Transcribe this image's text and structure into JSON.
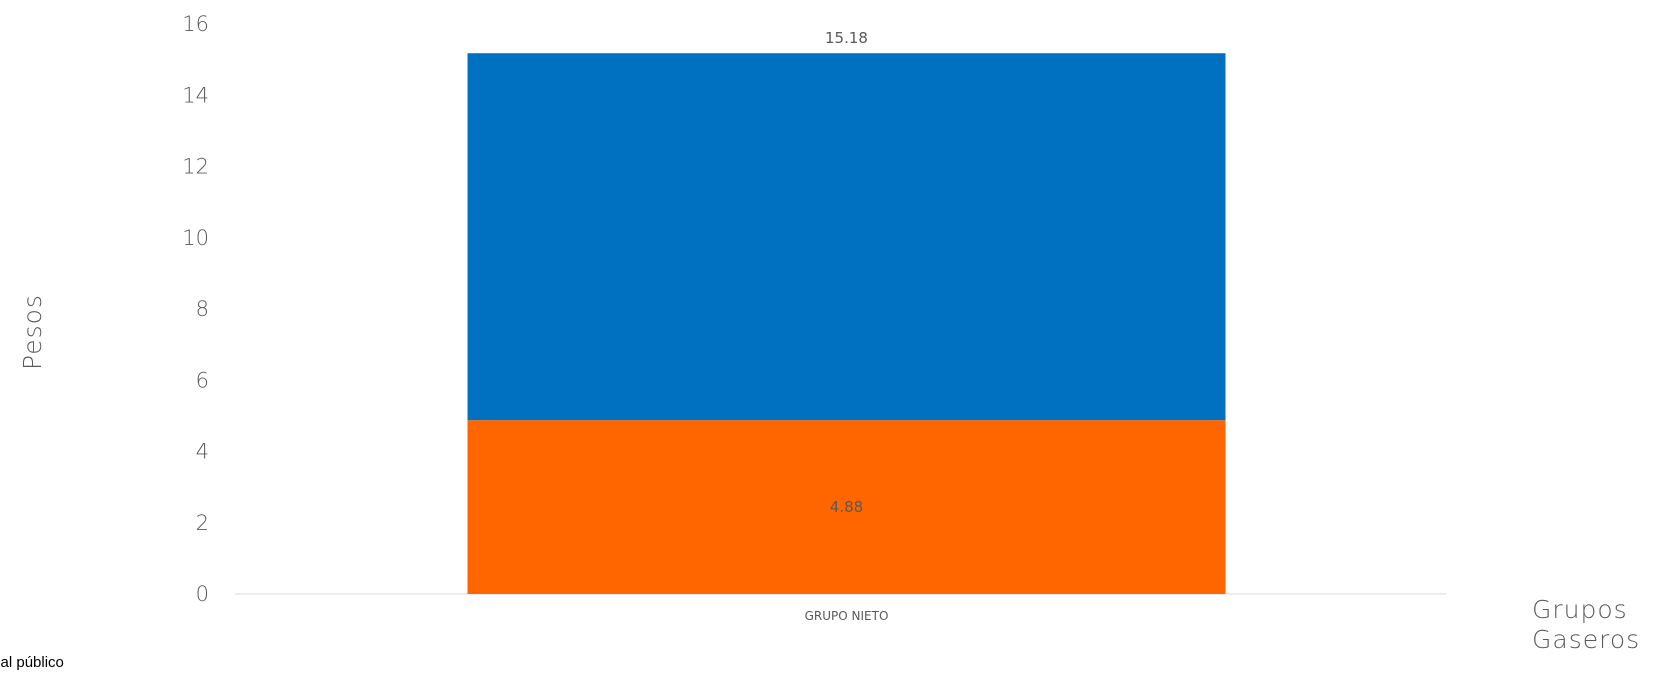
{
  "chart_data": {
    "type": "bar",
    "stacked": true,
    "categories": [
      "GRUPO NIETO"
    ],
    "series": [
      {
        "values": [
          4.88
        ],
        "color": "#FF6600"
      },
      {
        "values": [
          10.3
        ],
        "color": "#0070C0"
      }
    ],
    "data_labels": [
      "4.88",
      "15.18"
    ],
    "title": "",
    "xlabel": "Grupos Gaseros",
    "ylabel": "Pesos",
    "ylim": [
      0,
      16
    ],
    "yticks": [
      0,
      2,
      4,
      6,
      8,
      10,
      12,
      14,
      16
    ],
    "grid": false,
    "legend": "bottom-left"
  },
  "footer_text": "o al público",
  "xlabel_lines": [
    "Grupos",
    "Gaseros"
  ]
}
